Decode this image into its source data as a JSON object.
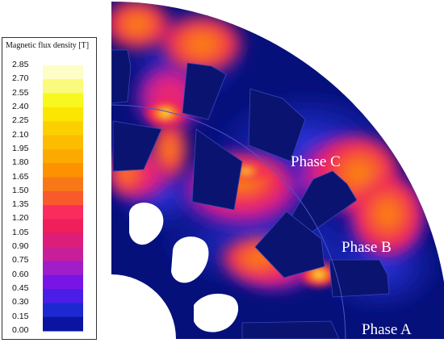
{
  "legend": {
    "title": "Magnetic flux density [T]",
    "ticks": [
      "2.85",
      "2.70",
      "2.55",
      "2.40",
      "2.25",
      "2.10",
      "1.95",
      "1.80",
      "1.65",
      "1.50",
      "1.35",
      "1.20",
      "1.05",
      "0.90",
      "0.75",
      "0.60",
      "0.45",
      "0.30",
      "0.15",
      "0.00"
    ],
    "colors": [
      "#fdfdc8",
      "#fafa7c",
      "#f8f81e",
      "#fae600",
      "#fcd000",
      "#fcbc00",
      "#fcaa00",
      "#fc9200",
      "#f87818",
      "#f85a2c",
      "#fa2c5e",
      "#f01e5a",
      "#dc1e78",
      "#c81e9a",
      "#a01ec8",
      "#7814e6",
      "#4a1ee6",
      "#1e28d0",
      "#0a14a0",
      "#000a6e"
    ]
  },
  "labels": {
    "phase_c": "Phase C",
    "phase_b": "Phase B",
    "phase_a": "Phase A"
  },
  "colors": {
    "background_field": "#06107a",
    "low_field": "#1c28c8",
    "mid_field": "#f02a62",
    "high_field": "#fca200",
    "peak_field": "#fcf6a0",
    "slot_fill": "#0a1470",
    "hole_fill": "#ffffff"
  }
}
